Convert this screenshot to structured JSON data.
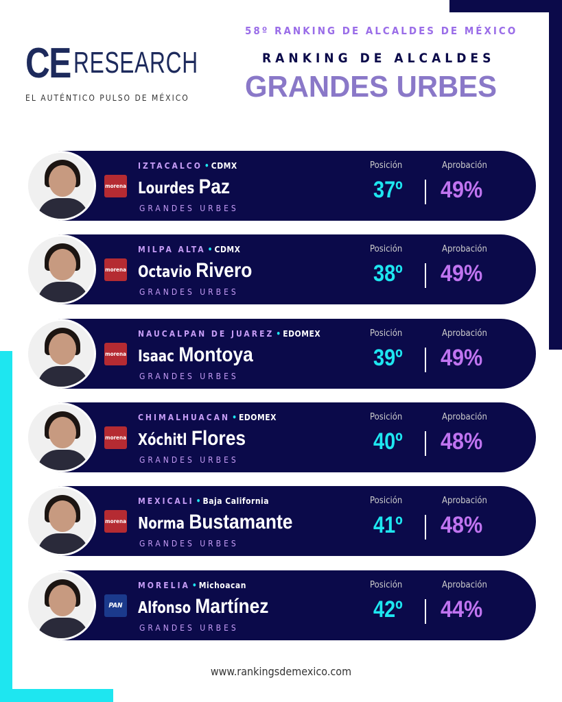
{
  "header": {
    "logo_ce": "CE",
    "logo_research": "RESEARCH",
    "logo_tagline": "EL AUTÉNTICO PULSO DE MÉXICO",
    "edition": "58º RANKING DE ALCALDES DE MÉXICO",
    "title": "RANKING DE ALCALDES",
    "subtitle": "GRANDES URBES"
  },
  "labels": {
    "position": "Posición",
    "approval": "Aprobación"
  },
  "colors": {
    "navy": "#0b0a4a",
    "cyan": "#1ee6f0",
    "purple": "#c074f0",
    "morena": "#b52b32",
    "pan": "#1b3a8c"
  },
  "mayors": [
    {
      "municipality": "IZTACALCO",
      "state": "CDMX",
      "first": "Lourdes",
      "last": "Paz",
      "category": "GRANDES URBES",
      "party": "morena",
      "position": "37º",
      "approval": "49%"
    },
    {
      "municipality": "MILPA ALTA",
      "state": "CDMX",
      "first": "Octavio",
      "last": "Rivero",
      "category": "GRANDES URBES",
      "party": "morena",
      "position": "38º",
      "approval": "49%"
    },
    {
      "municipality": "NAUCALPAN DE JUAREZ",
      "state": "EDOMEX",
      "first": "Isaac",
      "last": "Montoya",
      "category": "GRANDES URBES",
      "party": "morena",
      "position": "39º",
      "approval": "49%"
    },
    {
      "municipality": "CHIMALHUACAN",
      "state": "EDOMEX",
      "first": "Xóchitl",
      "last": "Flores",
      "category": "GRANDES URBES",
      "party": "morena",
      "position": "40º",
      "approval": "48%"
    },
    {
      "municipality": "MEXICALI",
      "state": "Baja California",
      "first": "Norma",
      "last": "Bustamante",
      "category": "GRANDES URBES",
      "party": "morena",
      "position": "41º",
      "approval": "48%"
    },
    {
      "municipality": "MORELIA",
      "state": "Michoacan",
      "first": "Alfonso",
      "last": "Martínez",
      "category": "GRANDES URBES",
      "party": "PAN",
      "position": "42º",
      "approval": "44%"
    }
  ],
  "footer": {
    "url": "www.rankingsdemexico.com"
  }
}
